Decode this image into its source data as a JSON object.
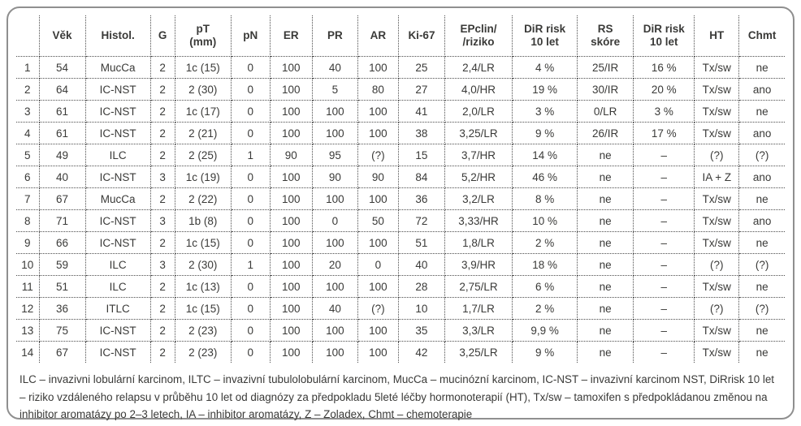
{
  "chart_data": {
    "type": "table",
    "columns": [
      "",
      "Věk",
      "Histol.",
      "G",
      "pT\n(mm)",
      "pN",
      "ER",
      "PR",
      "AR",
      "Ki-67",
      "EPclin/\n/riziko",
      "DiR risk\n10 let",
      "RS\nskóre",
      "DiR risk\n10 let",
      "HT",
      "Chmt"
    ],
    "rows": [
      [
        "1",
        "54",
        "MucCa",
        "2",
        "1c (15)",
        "0",
        "100",
        "40",
        "100",
        "25",
        "2,4/LR",
        "4 %",
        "25/IR",
        "16 %",
        "Tx/sw",
        "ne"
      ],
      [
        "2",
        "64",
        "IC-NST",
        "2",
        "2 (30)",
        "0",
        "100",
        "5",
        "80",
        "27",
        "4,0/HR",
        "19 %",
        "30/IR",
        "20 %",
        "Tx/sw",
        "ano"
      ],
      [
        "3",
        "61",
        "IC-NST",
        "2",
        "1c (17)",
        "0",
        "100",
        "100",
        "100",
        "41",
        "2,0/LR",
        "3 %",
        "0/LR",
        "3 %",
        "Tx/sw",
        "ne"
      ],
      [
        "4",
        "61",
        "IC-NST",
        "2",
        "2 (21)",
        "0",
        "100",
        "100",
        "100",
        "38",
        "3,25/LR",
        "9 %",
        "26/IR",
        "17 %",
        "Tx/sw",
        "ano"
      ],
      [
        "5",
        "49",
        "ILC",
        "2",
        "2 (25)",
        "1",
        "90",
        "95",
        "(?)",
        "15",
        "3,7/HR",
        "14 %",
        "ne",
        "–",
        "(?)",
        "(?)"
      ],
      [
        "6",
        "40",
        "IC-NST",
        "3",
        "1c (19)",
        "0",
        "100",
        "90",
        "90",
        "84",
        "5,2/HR",
        "46 %",
        "ne",
        "–",
        "IA + Z",
        "ano"
      ],
      [
        "7",
        "67",
        "MucCa",
        "2",
        "2 (22)",
        "0",
        "100",
        "100",
        "100",
        "36",
        "3,2/LR",
        "8 %",
        "ne",
        "–",
        "Tx/sw",
        "ne"
      ],
      [
        "8",
        "71",
        "IC-NST",
        "3",
        "1b (8)",
        "0",
        "100",
        "0",
        "50",
        "72",
        "3,33/HR",
        "10 %",
        "ne",
        "–",
        "Tx/sw",
        "ano"
      ],
      [
        "9",
        "66",
        "IC-NST",
        "2",
        "1c (15)",
        "0",
        "100",
        "100",
        "100",
        "51",
        "1,8/LR",
        "2 %",
        "ne",
        "–",
        "Tx/sw",
        "ne"
      ],
      [
        "10",
        "59",
        "ILC",
        "3",
        "2 (30)",
        "1",
        "100",
        "20",
        "0",
        "40",
        "3,9/HR",
        "18 %",
        "ne",
        "–",
        "(?)",
        "(?)"
      ],
      [
        "11",
        "51",
        "ILC",
        "2",
        "1c (13)",
        "0",
        "100",
        "100",
        "100",
        "28",
        "2,75/LR",
        "6 %",
        "ne",
        "–",
        "Tx/sw",
        "ne"
      ],
      [
        "12",
        "36",
        "ITLC",
        "2",
        "1c (15)",
        "0",
        "100",
        "40",
        "(?)",
        "10",
        "1,7/LR",
        "2 %",
        "ne",
        "–",
        "(?)",
        "(?)"
      ],
      [
        "13",
        "75",
        "IC-NST",
        "2",
        "2 (23)",
        "0",
        "100",
        "100",
        "100",
        "35",
        "3,3/LR",
        "9,9 %",
        "ne",
        "–",
        "Tx/sw",
        "ne"
      ],
      [
        "14",
        "67",
        "IC-NST",
        "2",
        "2 (23)",
        "0",
        "100",
        "100",
        "100",
        "42",
        "3,25/LR",
        "9 %",
        "ne",
        "–",
        "Tx/sw",
        "ne"
      ]
    ]
  },
  "footnote": "ILC – invazivni lobulární karcinom, ILTC – invazivní tubulolobulární karcinom, MucCa – mucinózní karcinom, IC-NST – invazivní karcinom NST, DiRrisk 10 let – riziko vzdáleného relapsu v průběhu 10 let od diagnózy za předpokladu 5leté léčby hormonoterapií (HT), Tx/sw – tamoxifen s předpokládanou změnou na inhibitor aromatázy po 2–3 letech, IA – inhibitor aromatázy, Z – Zoladex, Chmt – chemoterapie"
}
